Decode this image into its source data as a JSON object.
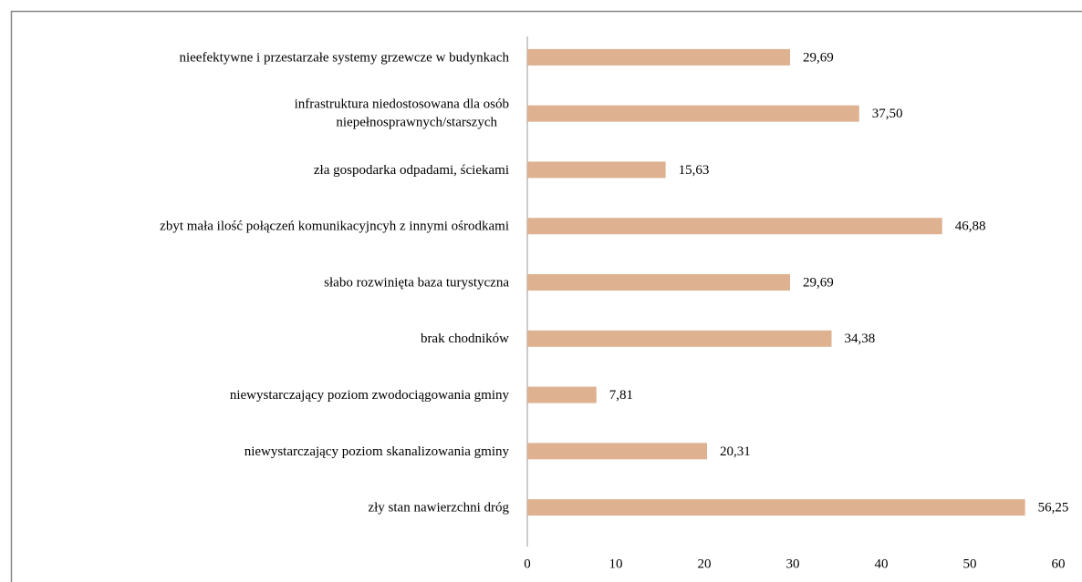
{
  "chart_data": {
    "type": "bar",
    "orientation": "horizontal",
    "categories": [
      "nieefektywne i przestarzałe systemy grzewcze w budynkach",
      "infrastruktura niedostosowana dla osób\nniepełnosprawnych/starszych",
      "zła gospodarka odpadami, ściekami",
      "zbyt mała ilość połączeń komunikacyjncyh z innymi ośrodkami",
      "słabo rozwinięta baza turystyczna",
      "brak chodników",
      "niewystarczający poziom zwodociągowania gminy",
      "niewystarczający poziom skanalizowania gminy",
      "zły stan nawierzchni dróg"
    ],
    "values": [
      29.69,
      37.5,
      15.63,
      46.88,
      29.69,
      34.38,
      7.81,
      20.31,
      56.25
    ],
    "value_labels": [
      "29,69",
      "37,50",
      "15,63",
      "46,88",
      "29,69",
      "34,38",
      "7,81",
      "20,31",
      "56,25"
    ],
    "color": "#deb190",
    "xlim": [
      0,
      60
    ],
    "xticks": [
      0,
      10,
      20,
      30,
      40,
      50,
      60
    ]
  }
}
